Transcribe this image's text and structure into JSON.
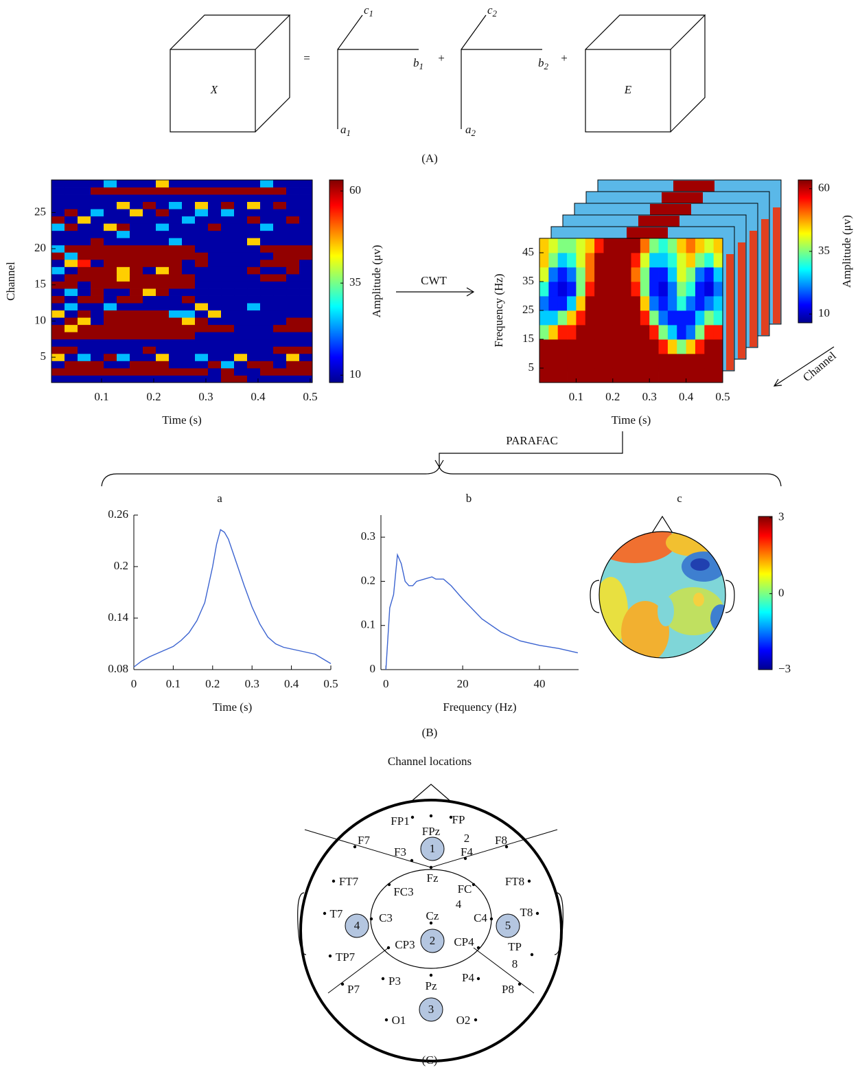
{
  "figure": {
    "tensor_labels": {
      "x": "X",
      "e": "E"
    },
    "operators": [
      "=",
      "+",
      "+"
    ],
    "factors": [
      {
        "c": "c",
        "c_index": "1",
        "b": "b",
        "b_index": "1",
        "a": "a",
        "a_index": "1"
      },
      {
        "c": "c",
        "c_index": "2",
        "b": "b",
        "b_index": "2",
        "a": "a",
        "a_index": "2"
      }
    ],
    "caption_a": "(A)",
    "cwt": "CWT",
    "parafac": "PARAFAC",
    "panel_labels": [
      "a",
      "b",
      "c"
    ],
    "caption_b": "(B)",
    "channel_locations_title": "Channel locations",
    "electrodes": [
      "FP1",
      "FPz",
      "FP",
      "2",
      "F7",
      "F3",
      "F4",
      "F8",
      "Fz",
      "FT7",
      "FC3",
      "FC",
      "4",
      "FT8",
      "T7",
      "C3",
      "Cz",
      "C4",
      "T8",
      "CP3",
      "CP4",
      "TP7",
      "TP",
      "8",
      "P7",
      "P3",
      "Pz",
      "P4",
      "P8",
      "O1",
      "O2"
    ],
    "regions": [
      "1",
      "2",
      "3",
      "4",
      "5"
    ],
    "caption_c": "(C)"
  },
  "chart_data": [
    {
      "type": "heatmap",
      "ylabel": "Channel",
      "xlabel": "Time (s)",
      "xlim": [
        0.004,
        0.504
      ],
      "ylim": [
        1.5,
        29.5
      ],
      "xticks": [
        0.1,
        0.2,
        0.3,
        0.4,
        0.5
      ],
      "yticks": [
        5,
        10,
        15,
        20,
        25
      ],
      "z": [
        [
          10,
          10,
          10,
          10,
          10,
          10,
          10,
          10,
          10,
          10,
          10,
          10,
          10,
          62,
          62,
          10,
          10,
          10,
          10,
          10
        ],
        [
          62,
          62,
          62,
          62,
          62,
          62,
          62,
          62,
          62,
          62,
          62,
          62,
          10,
          62,
          10,
          10,
          62,
          62,
          62,
          62
        ],
        [
          10,
          62,
          62,
          62,
          10,
          10,
          62,
          62,
          62,
          10,
          10,
          10,
          62,
          25,
          10,
          62,
          62,
          10,
          62,
          62
        ],
        [
          45,
          10,
          25,
          10,
          62,
          25,
          10,
          10,
          45,
          10,
          10,
          25,
          10,
          10,
          45,
          10,
          10,
          10,
          45,
          10
        ],
        [
          62,
          62,
          10,
          10,
          10,
          10,
          10,
          62,
          10,
          10,
          10,
          10,
          10,
          10,
          10,
          10,
          10,
          62,
          62,
          62
        ],
        [
          10,
          10,
          10,
          10,
          10,
          10,
          10,
          10,
          10,
          10,
          10,
          10,
          10,
          10,
          10,
          10,
          10,
          10,
          10,
          10
        ],
        [
          62,
          62,
          62,
          62,
          62,
          62,
          62,
          62,
          62,
          62,
          62,
          10,
          10,
          10,
          10,
          10,
          10,
          10,
          10,
          10
        ],
        [
          62,
          45,
          62,
          62,
          62,
          62,
          62,
          62,
          62,
          62,
          62,
          62,
          62,
          62,
          10,
          10,
          10,
          62,
          62,
          62
        ],
        [
          10,
          62,
          45,
          10,
          62,
          62,
          62,
          62,
          62,
          62,
          45,
          62,
          10,
          10,
          10,
          10,
          10,
          10,
          62,
          62
        ],
        [
          45,
          10,
          62,
          10,
          62,
          62,
          62,
          62,
          62,
          25,
          25,
          10,
          45,
          10,
          10,
          10,
          10,
          10,
          10,
          10
        ],
        [
          10,
          25,
          10,
          10,
          25,
          10,
          10,
          10,
          10,
          10,
          10,
          45,
          10,
          10,
          10,
          25,
          10,
          10,
          10,
          10
        ],
        [
          62,
          10,
          62,
          62,
          10,
          62,
          62,
          10,
          10,
          10,
          62,
          10,
          10,
          10,
          10,
          10,
          10,
          10,
          10,
          10
        ],
        [
          10,
          25,
          10,
          62,
          10,
          10,
          62,
          45,
          62,
          10,
          10,
          10,
          10,
          10,
          10,
          10,
          10,
          10,
          10,
          10
        ],
        [
          62,
          62,
          10,
          62,
          62,
          62,
          62,
          62,
          62,
          62,
          62,
          10,
          10,
          10,
          10,
          10,
          10,
          10,
          10,
          10
        ],
        [
          10,
          62,
          62,
          62,
          62,
          45,
          62,
          62,
          62,
          62,
          62,
          10,
          10,
          10,
          10,
          10,
          62,
          62,
          10,
          10
        ],
        [
          25,
          10,
          62,
          62,
          62,
          45,
          62,
          10,
          45,
          62,
          10,
          10,
          10,
          10,
          10,
          62,
          10,
          10,
          62,
          10
        ],
        [
          10,
          45,
          55,
          10,
          62,
          62,
          62,
          62,
          62,
          62,
          10,
          62,
          10,
          10,
          10,
          10,
          62,
          62,
          62,
          10
        ],
        [
          62,
          25,
          62,
          62,
          62,
          62,
          62,
          62,
          62,
          62,
          62,
          62,
          10,
          10,
          10,
          10,
          10,
          62,
          62,
          62
        ],
        [
          25,
          62,
          62,
          62,
          62,
          62,
          62,
          62,
          62,
          62,
          62,
          10,
          10,
          10,
          10,
          10,
          62,
          62,
          62,
          62
        ],
        [
          10,
          10,
          10,
          62,
          10,
          10,
          10,
          10,
          10,
          25,
          10,
          10,
          10,
          10,
          10,
          45,
          10,
          10,
          10,
          10
        ],
        [
          10,
          10,
          10,
          10,
          10,
          25,
          10,
          10,
          10,
          10,
          10,
          10,
          10,
          10,
          10,
          10,
          10,
          10,
          10,
          10
        ],
        [
          25,
          62,
          10,
          10,
          45,
          62,
          10,
          10,
          25,
          10,
          10,
          10,
          62,
          10,
          10,
          10,
          25,
          10,
          10,
          10
        ],
        [
          62,
          10,
          45,
          10,
          10,
          10,
          10,
          10,
          10,
          10,
          25,
          10,
          10,
          10,
          10,
          62,
          10,
          10,
          62,
          10
        ],
        [
          10,
          62,
          10,
          25,
          10,
          10,
          45,
          10,
          62,
          10,
          10,
          25,
          10,
          25,
          10,
          10,
          10,
          10,
          10,
          10
        ],
        [
          10,
          10,
          10,
          10,
          10,
          45,
          10,
          62,
          10,
          25,
          10,
          45,
          10,
          62,
          10,
          45,
          10,
          62,
          10,
          10
        ],
        [
          10,
          10,
          10,
          10,
          10,
          10,
          10,
          10,
          10,
          10,
          10,
          10,
          10,
          10,
          10,
          10,
          10,
          10,
          10,
          10
        ],
        [
          10,
          10,
          10,
          62,
          62,
          62,
          62,
          62,
          62,
          62,
          62,
          62,
          62,
          62,
          62,
          62,
          62,
          62,
          10,
          10
        ],
        [
          10,
          10,
          10,
          10,
          25,
          10,
          10,
          10,
          45,
          10,
          10,
          10,
          10,
          10,
          10,
          10,
          25,
          10,
          10,
          10
        ]
      ],
      "colorbar": {
        "label": "Amplitude (μv)",
        "clim": [
          8,
          63
        ],
        "ticks": [
          10,
          35,
          60
        ]
      }
    },
    {
      "type": "heatmap",
      "ylabel": "Frequency (Hz)",
      "xlabel": "Time (s)",
      "depth_label": "Channel",
      "xlim": [
        0,
        0.5
      ],
      "ylim": [
        0,
        50
      ],
      "xticks": [
        0.1,
        0.2,
        0.3,
        0.4,
        0.5
      ],
      "yticks": [
        5,
        15,
        25,
        35,
        45
      ],
      "z": [
        [
          62,
          62,
          62,
          62,
          62,
          62,
          62,
          62,
          62,
          62,
          62,
          62,
          62,
          62,
          62,
          62,
          62,
          62,
          62,
          62
        ],
        [
          62,
          62,
          62,
          62,
          62,
          62,
          62,
          62,
          62,
          62,
          62,
          62,
          62,
          62,
          62,
          62,
          62,
          62,
          62,
          62
        ],
        [
          62,
          62,
          62,
          62,
          62,
          62,
          62,
          62,
          62,
          62,
          62,
          62,
          62,
          55,
          45,
          35,
          45,
          55,
          62,
          62
        ],
        [
          35,
          45,
          55,
          55,
          62,
          62,
          62,
          62,
          62,
          62,
          62,
          62,
          55,
          35,
          25,
          15,
          20,
          35,
          55,
          55
        ],
        [
          25,
          25,
          35,
          45,
          55,
          62,
          62,
          62,
          62,
          62,
          62,
          55,
          35,
          20,
          15,
          15,
          15,
          25,
          35,
          30
        ],
        [
          20,
          15,
          15,
          25,
          45,
          62,
          62,
          62,
          62,
          62,
          62,
          45,
          20,
          15,
          20,
          30,
          20,
          15,
          20,
          25
        ],
        [
          30,
          15,
          12,
          15,
          35,
          55,
          62,
          62,
          62,
          62,
          55,
          35,
          15,
          12,
          20,
          35,
          30,
          15,
          12,
          20
        ],
        [
          40,
          20,
          15,
          20,
          35,
          50,
          62,
          62,
          62,
          62,
          50,
          35,
          15,
          15,
          25,
          40,
          35,
          20,
          15,
          25
        ],
        [
          45,
          35,
          25,
          30,
          40,
          50,
          62,
          62,
          62,
          62,
          55,
          40,
          25,
          25,
          30,
          40,
          45,
          35,
          30,
          40
        ],
        [
          45,
          40,
          35,
          35,
          40,
          45,
          55,
          62,
          62,
          62,
          62,
          50,
          35,
          30,
          35,
          45,
          50,
          45,
          40,
          45
        ]
      ],
      "colorbar": {
        "label": "Amplitude (μv)",
        "clim": [
          6.5,
          63.5
        ],
        "ticks": [
          10,
          35,
          60
        ]
      }
    },
    {
      "type": "line",
      "xlabel": "Time (s)",
      "color": "#3b63d0",
      "x": [
        0,
        0.02,
        0.04,
        0.06,
        0.08,
        0.1,
        0.12,
        0.14,
        0.16,
        0.18,
        0.2,
        0.21,
        0.22,
        0.23,
        0.24,
        0.26,
        0.28,
        0.3,
        0.32,
        0.34,
        0.36,
        0.38,
        0.4,
        0.42,
        0.46,
        0.5
      ],
      "values": [
        0.083,
        0.09,
        0.095,
        0.099,
        0.103,
        0.107,
        0.114,
        0.123,
        0.137,
        0.158,
        0.2,
        0.226,
        0.243,
        0.24,
        0.232,
        0.205,
        0.178,
        0.153,
        0.133,
        0.118,
        0.11,
        0.106,
        0.104,
        0.102,
        0.098,
        0.087
      ],
      "xlim": [
        0,
        0.5
      ],
      "ylim": [
        0.08,
        0.26
      ],
      "xticks": [
        0,
        0.1,
        0.2,
        0.3,
        0.4,
        0.5
      ],
      "yticks": [
        0.08,
        0.14,
        0.2,
        0.26
      ]
    },
    {
      "type": "line",
      "xlabel": "Frequency (Hz)",
      "color": "#3b63d0",
      "x": [
        0,
        1,
        2,
        3,
        4,
        5,
        6,
        7,
        8,
        10,
        12,
        13,
        15,
        17,
        20,
        25,
        30,
        35,
        40,
        45,
        50
      ],
      "values": [
        0,
        0.14,
        0.17,
        0.26,
        0.24,
        0.2,
        0.19,
        0.19,
        0.2,
        0.205,
        0.21,
        0.205,
        0.205,
        0.19,
        0.16,
        0.115,
        0.085,
        0.065,
        0.055,
        0.048,
        0.038
      ],
      "xlim": [
        -1.3,
        50.2
      ],
      "ylim": [
        0,
        0.35
      ],
      "xticks": [
        0,
        20,
        40
      ],
      "yticks": [
        0,
        0.1,
        0.2,
        0.3
      ]
    },
    {
      "type": "topomap",
      "colorbar": {
        "clim": [
          -3,
          3.05
        ],
        "ticks": [
          3,
          0,
          {
            "value": -3,
            "label": "−3"
          }
        ]
      }
    }
  ]
}
